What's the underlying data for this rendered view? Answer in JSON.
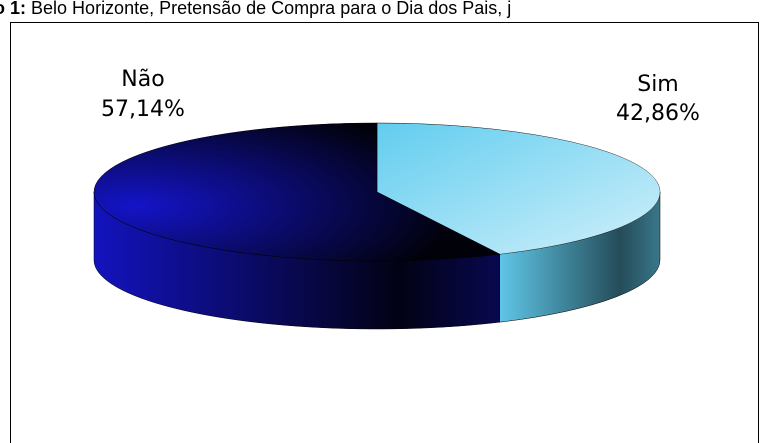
{
  "title_label": "o 1:",
  "title": "Belo Horizonte, Pretensão de Compra para o Dia dos Pais, j",
  "chart_data": {
    "type": "pie",
    "categories": [
      "Não",
      "Sim"
    ],
    "values": [
      57.14,
      42.86
    ],
    "value_labels": [
      "57,14%",
      "42,86%"
    ],
    "colors": [
      "#1414c8",
      "#62cdef"
    ],
    "direction": "counterclockwise"
  }
}
